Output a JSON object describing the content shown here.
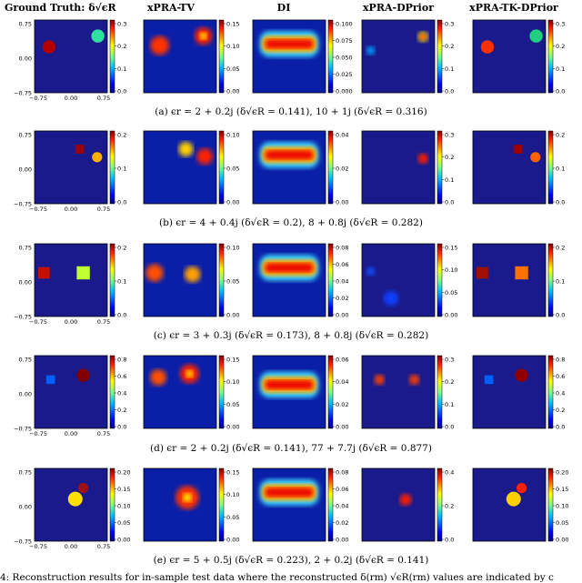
{
  "column_headers": [
    "Ground Truth: δ√ϵR",
    "xPRA-TV",
    "DI",
    "xPRA-DPrior",
    "xPRA-TK-DPrior"
  ],
  "gt_axis_ticks": {
    "x": [
      "−0.75",
      "0.00",
      "0.75"
    ],
    "y": [
      "0.75",
      "0.00",
      "−0.75"
    ]
  },
  "rows": [
    {
      "caption": "(a) ϵr = 2 + 0.2j (δ√ϵR = 0.141), 10 + 1j (δ√ϵR = 0.316)",
      "colorbars": [
        [
          "0.3",
          "0.2",
          "0.1",
          "0.0"
        ],
        [
          "0.15",
          "0.10",
          "0.05",
          "0.00"
        ],
        [
          "0.100",
          "0.075",
          "0.050",
          "0.025",
          "0.000"
        ],
        [
          "0.3",
          "0.2",
          "0.1",
          "0.0"
        ],
        [
          "0.3",
          "0.2",
          "0.1",
          "0.0"
        ]
      ]
    },
    {
      "caption": "(b) ϵr = 4 + 0.4j (δ√ϵR = 0.2), 8 + 0.8j (δ√ϵR = 0.282)",
      "colorbars": [
        [
          "0.2",
          "0.1",
          "0.0"
        ],
        [
          "0.10",
          "0.05",
          "0.00"
        ],
        [
          "0.04",
          "0.02",
          "0.00"
        ],
        [
          "0.3",
          "0.2",
          "0.1",
          "0.0"
        ],
        [
          "0.2",
          "0.1",
          "0.0"
        ]
      ]
    },
    {
      "caption": "(c) ϵr = 3 + 0.3j (δ√ϵR = 0.173), 8 + 0.8j (δ√ϵR = 0.282)",
      "colorbars": [
        [
          "0.2",
          "0.1",
          "0.0"
        ],
        [
          "0.10",
          "0.05",
          "0.00"
        ],
        [
          "0.08",
          "0.06",
          "0.04",
          "0.02",
          "0.00"
        ],
        [
          "0.15",
          "0.10",
          "0.05",
          "0.00"
        ],
        [
          "0.2",
          "0.1",
          "0.0"
        ]
      ]
    },
    {
      "caption": "(d) ϵr = 2 + 0.2j (δ√ϵR = 0.141), 77 + 7.7j (δ√ϵR = 0.877)",
      "colorbars": [
        [
          "0.8",
          "0.6",
          "0.4",
          "0.2",
          "0.0"
        ],
        [
          "0.15",
          "0.10",
          "0.05",
          "0.00"
        ],
        [
          "0.06",
          "0.04",
          "0.02",
          "0.00"
        ],
        [
          "0.3",
          "0.2",
          "0.1",
          "0.0"
        ],
        [
          "0.8",
          "0.6",
          "0.4",
          "0.2",
          "0.0"
        ]
      ]
    },
    {
      "caption": "(e) ϵr = 5 + 0.5j (δ√ϵR = 0.223), 2 + 0.2j (δ√ϵR = 0.141)",
      "colorbars": [
        [
          "0.20",
          "0.15",
          "0.10",
          "0.05",
          "0.00"
        ],
        [
          "0.15",
          "0.10",
          "0.05",
          "0.00"
        ],
        [
          "0.08",
          "0.06",
          "0.04",
          "0.02",
          "0.00"
        ],
        [
          "0.4",
          "0.2",
          "0.0"
        ],
        [
          "0.20",
          "0.15",
          "0.10",
          "0.05",
          "0.00"
        ]
      ]
    }
  ],
  "figure_caption": "4: Reconstruction results for in-sample test data where the reconstructed δ(rm) √ϵR(rm) values are indicated by c",
  "colors": {
    "background_navy": "#1a1a8c",
    "jet_stops": [
      "#00007f",
      "#0000ff",
      "#007fff",
      "#00ffff",
      "#7fff7f",
      "#ffff00",
      "#ff7f00",
      "#ff0000",
      "#7f0000"
    ]
  }
}
